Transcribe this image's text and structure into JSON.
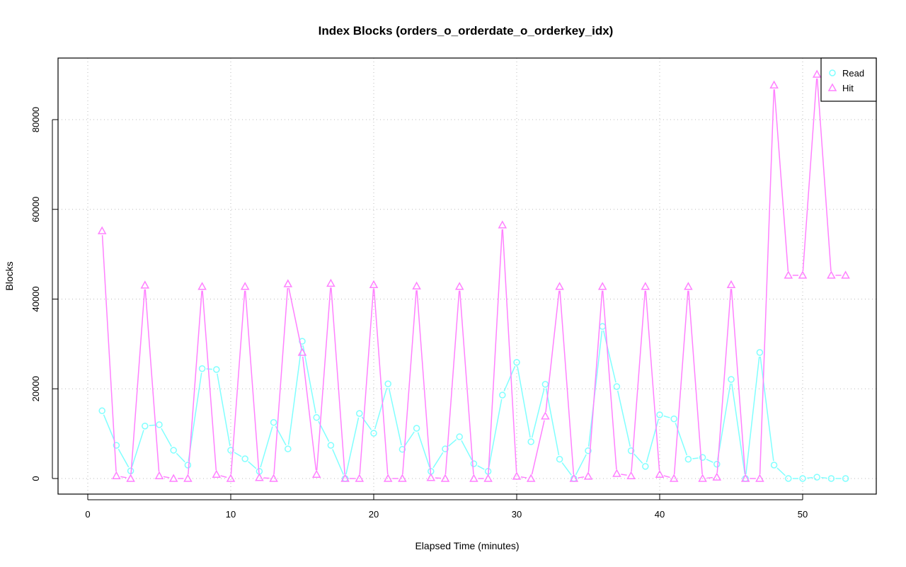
{
  "chart_data": {
    "type": "line",
    "title": "Index Blocks (orders_o_orderdate_o_orderkey_idx)",
    "xlabel": "Elapsed Time (minutes)",
    "ylabel": "Blocks",
    "xlim": [
      -2,
      55
    ],
    "ylim": [
      -3500,
      94000
    ],
    "xticks": [
      0,
      10,
      20,
      30,
      40,
      50
    ],
    "yticks": [
      0,
      20000,
      40000,
      60000,
      80000
    ],
    "grid": true,
    "legend": "top-right",
    "x": [
      1,
      2,
      3,
      4,
      5,
      6,
      7,
      8,
      9,
      10,
      11,
      12,
      13,
      14,
      15,
      16,
      17,
      18,
      19,
      20,
      21,
      22,
      23,
      24,
      25,
      26,
      27,
      28,
      29,
      30,
      31,
      32,
      33,
      34,
      35,
      36,
      37,
      38,
      39,
      40,
      41,
      42,
      43,
      44,
      45,
      46,
      47,
      48,
      49,
      50,
      51,
      52,
      53
    ],
    "series": [
      {
        "name": "Read",
        "color": "#80ffff",
        "marker": "circle",
        "values": [
          15100,
          7400,
          1700,
          11700,
          12000,
          6300,
          3000,
          24500,
          24300,
          6300,
          4400,
          1600,
          12500,
          6600,
          30600,
          13600,
          7400,
          0,
          14500,
          10100,
          21100,
          6500,
          11200,
          1600,
          6600,
          9300,
          3300,
          1600,
          18600,
          25900,
          8200,
          21000,
          4300,
          0,
          6200,
          33900,
          20500,
          6200,
          2700,
          14200,
          13300,
          4300,
          4700,
          3200,
          22100,
          0,
          28100,
          3000,
          0,
          0,
          300,
          0,
          0
        ]
      },
      {
        "name": "Hit",
        "color": "#ff80ff",
        "marker": "triangle",
        "values": [
          55200,
          600,
          0,
          43100,
          600,
          0,
          0,
          42800,
          900,
          0,
          42800,
          200,
          0,
          43400,
          28100,
          900,
          43500,
          0,
          0,
          43200,
          0,
          0,
          42900,
          200,
          0,
          42800,
          0,
          0,
          56500,
          500,
          0,
          13900,
          42800,
          0,
          500,
          42800,
          1100,
          600,
          42800,
          900,
          0,
          42800,
          0,
          300,
          43200,
          0,
          0,
          87700,
          45300,
          45300,
          90100,
          45300,
          45300
        ]
      }
    ]
  }
}
